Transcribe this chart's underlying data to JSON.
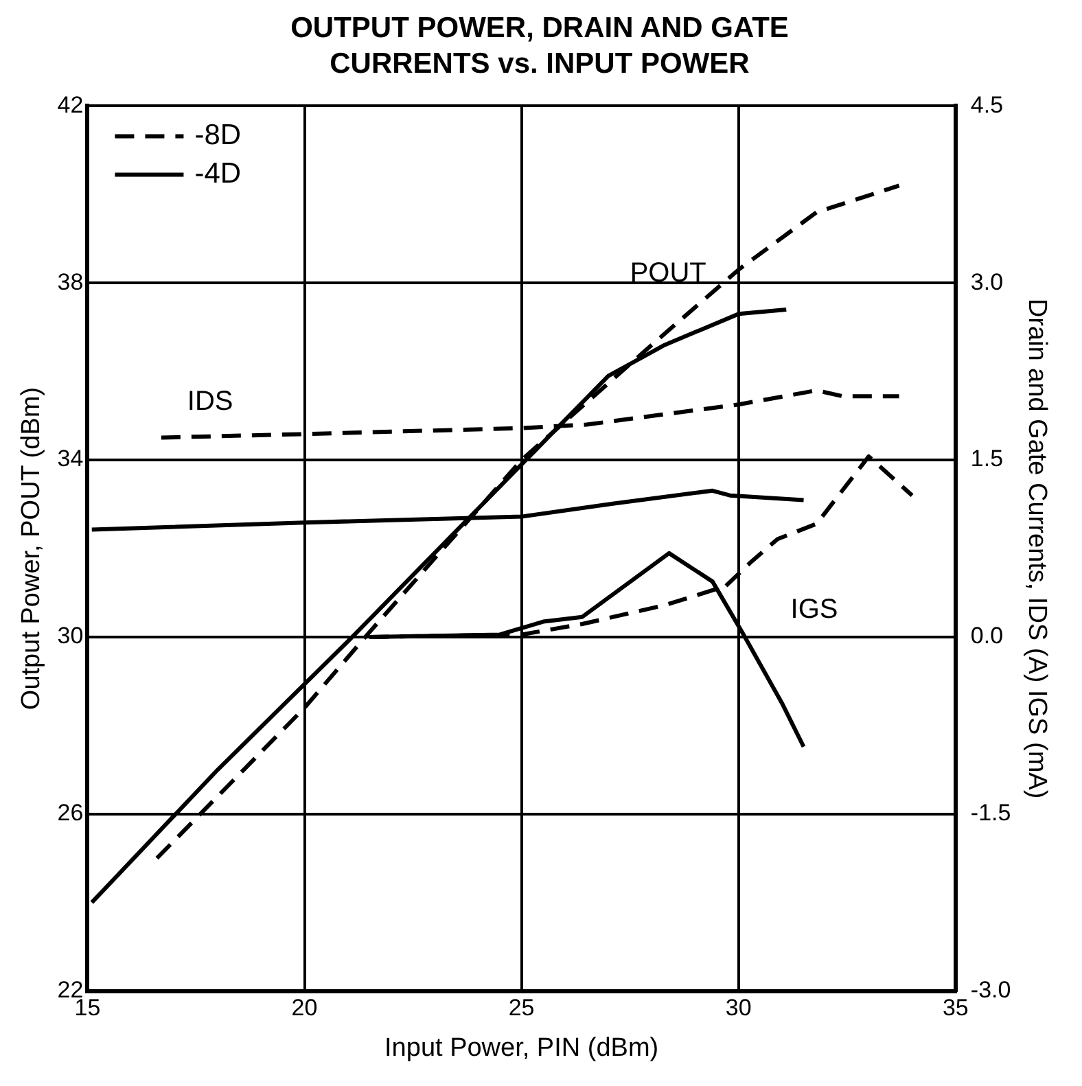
{
  "chart_data": {
    "type": "line",
    "title": "OUTPUT POWER, DRAIN AND GATE CURRENTS vs. INPUT POWER",
    "xlabel": "Input Power, PIN (dBm)",
    "ylabel": "Output Power, POUT (dBm)",
    "y2label": "Drain and Gate Currents, IDS (A) IGS (mA)",
    "xlim": [
      15,
      35
    ],
    "xticks": [
      15,
      20,
      25,
      30,
      35
    ],
    "ylim": [
      22,
      42
    ],
    "yticks": [
      22,
      26,
      30,
      34,
      38,
      42
    ],
    "y2lim": [
      -3,
      4.5
    ],
    "y2ticks": [
      {
        "value": -3,
        "label": "-3.0"
      },
      {
        "value": -1.5,
        "label": "-1.5"
      },
      {
        "value": 0,
        "label": "0.0"
      },
      {
        "value": 1.5,
        "label": "1.5"
      },
      {
        "value": 3,
        "label": "3.0"
      },
      {
        "value": 4.5,
        "label": "4.5"
      }
    ],
    "grid": true,
    "legend": "top left",
    "marker": "none",
    "series": [
      {
        "name": "-8D",
        "color": "#000000",
        "line_style": "dashed",
        "x": [
          16.6,
          20,
          21.4,
          25,
          28,
          30,
          31.8,
          33.7
        ],
        "values": [
          25.0,
          28.4,
          30,
          34,
          36.6,
          38.3,
          39.6,
          40.2
        ]
      },
      {
        "name": "-4D",
        "color": "#000000",
        "line_style": "solid",
        "x": [
          15.1,
          18,
          21.1,
          25,
          27,
          28.3,
          30,
          31.1
        ],
        "values": [
          24.0,
          27.0,
          30,
          33.9,
          35.9,
          36.6,
          37.3,
          37.4
        ]
      },
      {
        "color": "#000000",
        "line_style": "dashed",
        "axis": "y2",
        "x": [
          16.7,
          20,
          25,
          26.5,
          30,
          31.8,
          32.4,
          33.7
        ],
        "values": [
          1.69,
          1.72,
          1.77,
          1.8,
          1.97,
          2.09,
          2.04,
          2.04
        ]
      },
      {
        "color": "#000000",
        "line_style": "solid",
        "axis": "y2",
        "x": [
          15.1,
          20,
          25,
          27.1,
          29.4,
          29.8,
          31.5
        ],
        "values": [
          0.91,
          0.97,
          1.02,
          1.13,
          1.24,
          1.2,
          1.16
        ]
      },
      {
        "color": "#000000",
        "line_style": "dashed",
        "axis": "y2",
        "x": [
          21.5,
          25,
          26.4,
          28.3,
          29.7,
          30.3,
          30.9,
          31.8,
          33.0,
          34.0
        ],
        "values": [
          0,
          0.02,
          0.11,
          0.27,
          0.43,
          0.64,
          0.83,
          0.96,
          1.53,
          1.2
        ]
      },
      {
        "color": "#000000",
        "line_style": "solid",
        "axis": "y2",
        "x": [
          21.5,
          24.5,
          25.5,
          26.4,
          28.4,
          29.4,
          30.1,
          31.0,
          31.5
        ],
        "values": [
          0,
          0.02,
          0.13,
          0.17,
          0.71,
          0.47,
          0.03,
          -0.56,
          -0.93
        ]
      }
    ],
    "annotations": [
      "POUT",
      "IDS",
      "IGS"
    ]
  }
}
